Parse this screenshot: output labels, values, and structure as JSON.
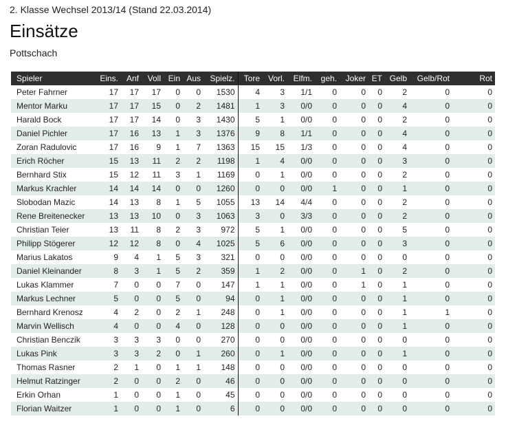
{
  "header": {
    "subtitle": "2. Klasse Wechsel 2013/14 (Stand 22.03.2014)",
    "title": "Einsätze",
    "team": "Pottschach"
  },
  "table": {
    "columns": [
      "Spieler",
      "Eins.",
      "Anf",
      "Voll",
      "Ein",
      "Aus",
      "Spielz.",
      "Tore",
      "Vorl.",
      "Elfm.",
      "geh.",
      "Joker",
      "ET",
      "Gelb",
      "Gelb/Rot",
      "Rot"
    ],
    "rows": [
      [
        "Peter Fahrner",
        "17",
        "17",
        "17",
        "0",
        "0",
        "1530",
        "4",
        "3",
        "1/1",
        "0",
        "0",
        "0",
        "2",
        "0",
        "0"
      ],
      [
        "Mentor Marku",
        "17",
        "17",
        "15",
        "0",
        "2",
        "1481",
        "1",
        "3",
        "0/0",
        "0",
        "0",
        "0",
        "4",
        "0",
        "0"
      ],
      [
        "Harald Bock",
        "17",
        "17",
        "14",
        "0",
        "3",
        "1430",
        "5",
        "1",
        "0/0",
        "0",
        "0",
        "0",
        "2",
        "0",
        "0"
      ],
      [
        "Daniel Pichler",
        "17",
        "16",
        "13",
        "1",
        "3",
        "1376",
        "9",
        "8",
        "1/1",
        "0",
        "0",
        "0",
        "4",
        "0",
        "0"
      ],
      [
        "Zoran Radulovic",
        "17",
        "16",
        "9",
        "1",
        "7",
        "1363",
        "15",
        "15",
        "1/3",
        "0",
        "0",
        "0",
        "4",
        "0",
        "0"
      ],
      [
        "Erich Röcher",
        "15",
        "13",
        "11",
        "2",
        "2",
        "1198",
        "1",
        "4",
        "0/0",
        "0",
        "0",
        "0",
        "3",
        "0",
        "0"
      ],
      [
        "Bernhard Stix",
        "15",
        "12",
        "11",
        "3",
        "1",
        "1169",
        "0",
        "1",
        "0/0",
        "0",
        "0",
        "0",
        "2",
        "0",
        "0"
      ],
      [
        "Markus Krachler",
        "14",
        "14",
        "14",
        "0",
        "0",
        "1260",
        "0",
        "0",
        "0/0",
        "1",
        "0",
        "0",
        "1",
        "0",
        "0"
      ],
      [
        "Slobodan Mazic",
        "14",
        "13",
        "8",
        "1",
        "5",
        "1055",
        "13",
        "14",
        "4/4",
        "0",
        "0",
        "0",
        "2",
        "0",
        "0"
      ],
      [
        "Rene Breitenecker",
        "13",
        "13",
        "10",
        "0",
        "3",
        "1063",
        "3",
        "0",
        "3/3",
        "0",
        "0",
        "0",
        "2",
        "0",
        "0"
      ],
      [
        "Christian Teier",
        "13",
        "11",
        "8",
        "2",
        "3",
        "972",
        "5",
        "1",
        "0/0",
        "0",
        "0",
        "0",
        "5",
        "0",
        "0"
      ],
      [
        "Philipp Stögerer",
        "12",
        "12",
        "8",
        "0",
        "4",
        "1025",
        "5",
        "6",
        "0/0",
        "0",
        "0",
        "0",
        "3",
        "0",
        "0"
      ],
      [
        "Marius Lakatos",
        "9",
        "4",
        "1",
        "5",
        "3",
        "321",
        "0",
        "0",
        "0/0",
        "0",
        "0",
        "0",
        "0",
        "0",
        "0"
      ],
      [
        "Daniel Kleinander",
        "8",
        "3",
        "1",
        "5",
        "2",
        "359",
        "1",
        "2",
        "0/0",
        "0",
        "1",
        "0",
        "2",
        "0",
        "0"
      ],
      [
        "Lukas Klammer",
        "7",
        "0",
        "0",
        "7",
        "0",
        "147",
        "1",
        "1",
        "0/0",
        "0",
        "1",
        "0",
        "1",
        "0",
        "0"
      ],
      [
        "Markus Lechner",
        "5",
        "0",
        "0",
        "5",
        "0",
        "94",
        "0",
        "1",
        "0/0",
        "0",
        "0",
        "0",
        "1",
        "0",
        "0"
      ],
      [
        "Bernhard Krenosz",
        "4",
        "2",
        "0",
        "2",
        "1",
        "248",
        "0",
        "1",
        "0/0",
        "0",
        "0",
        "0",
        "1",
        "1",
        "0"
      ],
      [
        "Marvin Wellisch",
        "4",
        "0",
        "0",
        "4",
        "0",
        "128",
        "0",
        "0",
        "0/0",
        "0",
        "0",
        "0",
        "1",
        "0",
        "0"
      ],
      [
        "Christian Benczik",
        "3",
        "3",
        "3",
        "0",
        "0",
        "270",
        "0",
        "0",
        "0/0",
        "0",
        "0",
        "0",
        "0",
        "0",
        "0"
      ],
      [
        "Lukas Pink",
        "3",
        "3",
        "2",
        "0",
        "1",
        "260",
        "0",
        "1",
        "0/0",
        "0",
        "0",
        "0",
        "1",
        "0",
        "0"
      ],
      [
        "Thomas Rasner",
        "2",
        "1",
        "0",
        "1",
        "1",
        "148",
        "0",
        "0",
        "0/0",
        "0",
        "0",
        "0",
        "0",
        "0",
        "0"
      ],
      [
        "Helmut Ratzinger",
        "2",
        "0",
        "0",
        "2",
        "0",
        "46",
        "0",
        "0",
        "0/0",
        "0",
        "0",
        "0",
        "0",
        "0",
        "0"
      ],
      [
        "Erkin Orhan",
        "1",
        "0",
        "0",
        "1",
        "0",
        "45",
        "0",
        "0",
        "0/0",
        "0",
        "0",
        "0",
        "0",
        "0",
        "0"
      ],
      [
        "Florian Waitzer",
        "1",
        "0",
        "0",
        "1",
        "0",
        "6",
        "0",
        "0",
        "0/0",
        "0",
        "0",
        "0",
        "0",
        "0",
        "0"
      ]
    ]
  }
}
